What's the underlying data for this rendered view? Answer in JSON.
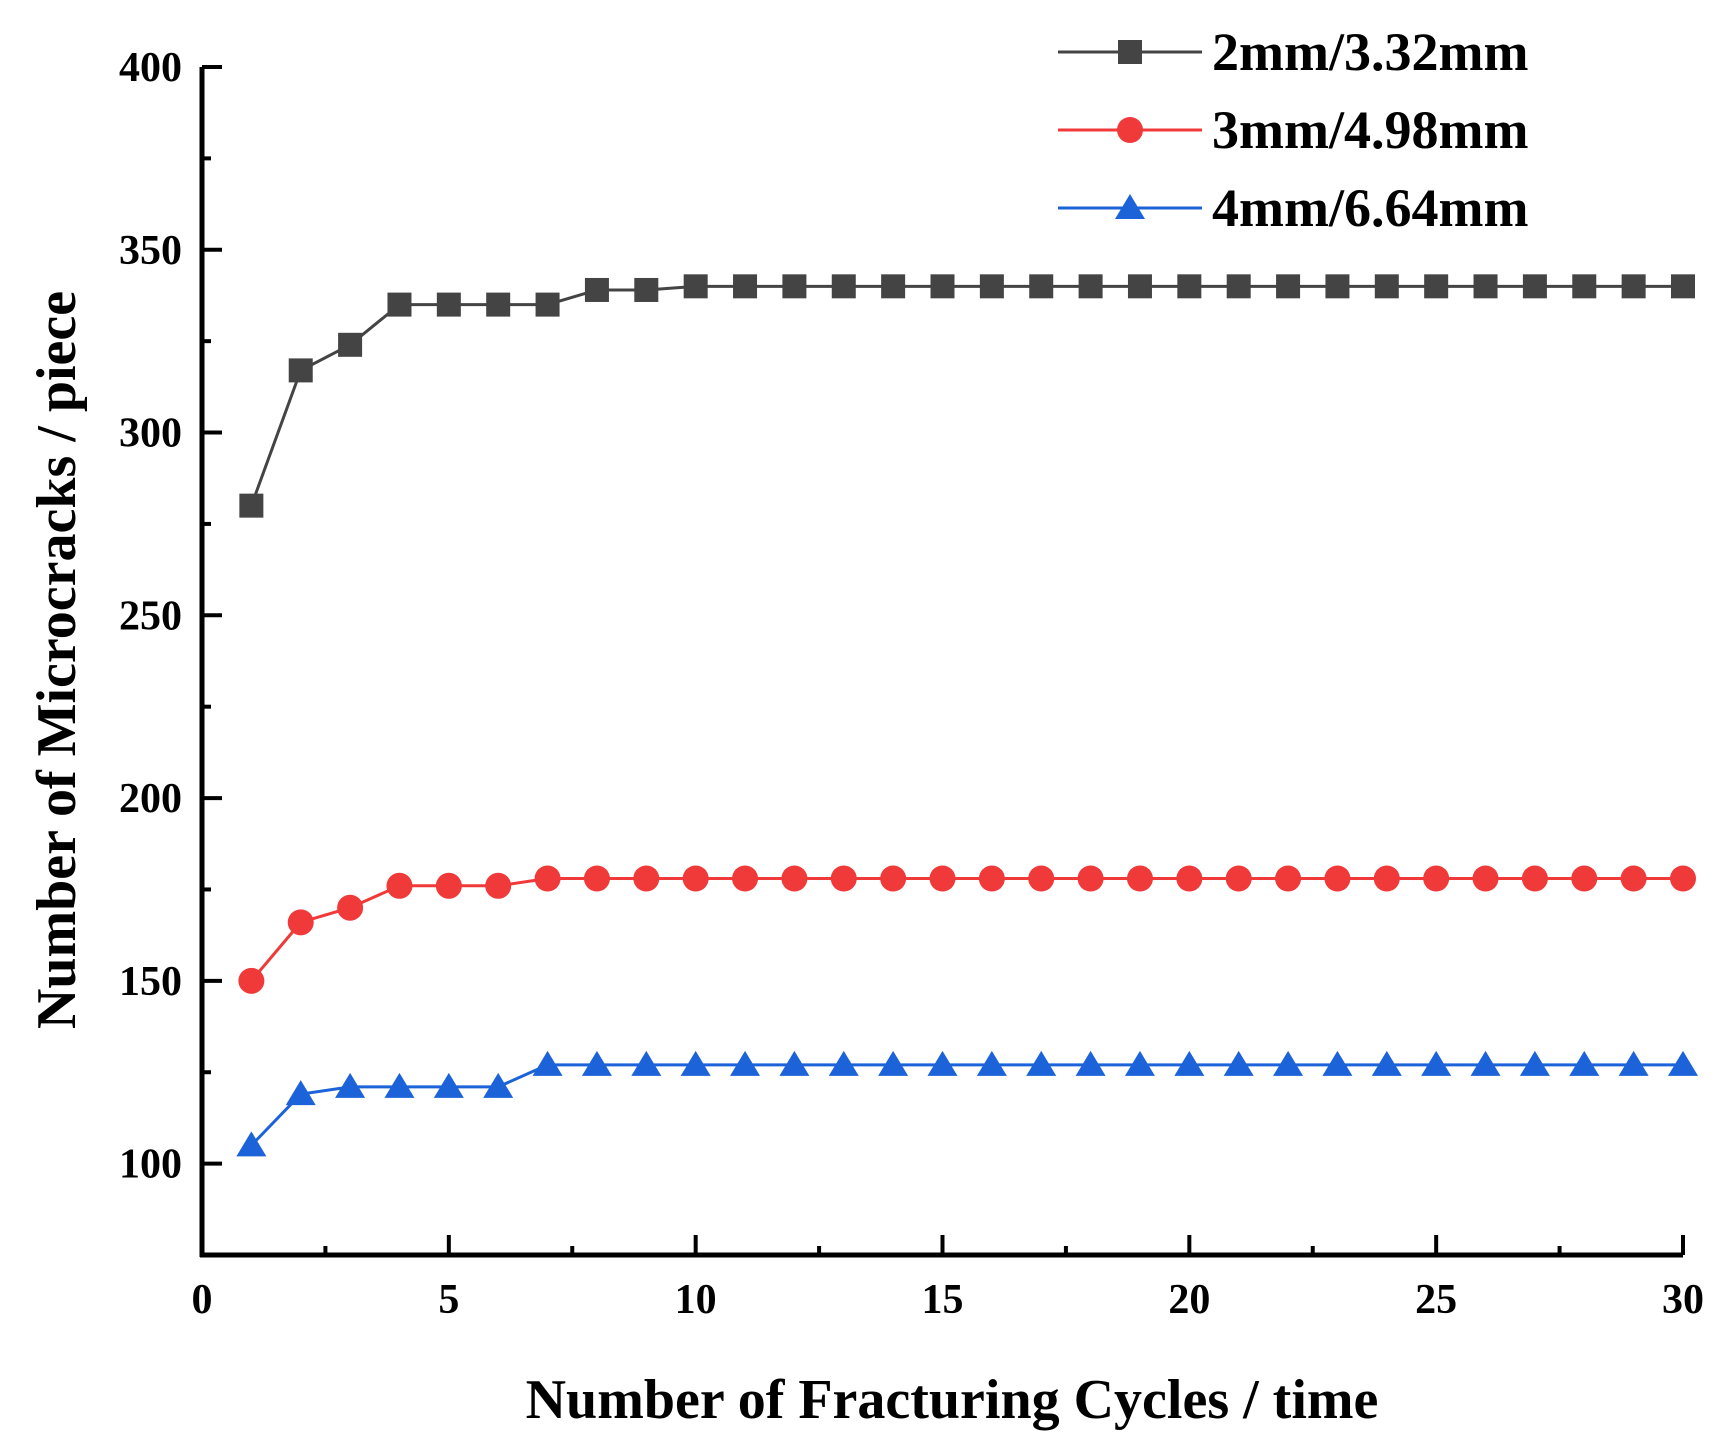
{
  "chart_data": {
    "type": "line",
    "title": "",
    "xlabel": "Number of Fracturing Cycles / time",
    "ylabel": "Number of Microcracks / piece",
    "xlim": [
      0,
      30
    ],
    "ylim": [
      75,
      400
    ],
    "xticks": [
      "0",
      "5",
      "10",
      "15",
      "20",
      "25",
      "30"
    ],
    "yticks": [
      "100",
      "150",
      "200",
      "250",
      "300",
      "350",
      "400"
    ],
    "grid": false,
    "legend_position": "top-right",
    "x": [
      1,
      2,
      3,
      4,
      5,
      6,
      7,
      8,
      9,
      10,
      11,
      12,
      13,
      14,
      15,
      16,
      17,
      18,
      19,
      20,
      21,
      22,
      23,
      24,
      25,
      26,
      27,
      28,
      29,
      30
    ],
    "series": [
      {
        "name": "2mm/3.32mm",
        "color": "#444444",
        "marker": "square",
        "values": [
          280,
          317,
          324,
          335,
          335,
          335,
          335,
          339,
          339,
          340,
          340,
          340,
          340,
          340,
          340,
          340,
          340,
          340,
          340,
          340,
          340,
          340,
          340,
          340,
          340,
          340,
          340,
          340,
          340,
          340
        ]
      },
      {
        "name": "3mm/4.98mm",
        "color": "#f03a3a",
        "marker": "circle",
        "values": [
          150,
          166,
          170,
          176,
          176,
          176,
          178,
          178,
          178,
          178,
          178,
          178,
          178,
          178,
          178,
          178,
          178,
          178,
          178,
          178,
          178,
          178,
          178,
          178,
          178,
          178,
          178,
          178,
          178,
          178
        ]
      },
      {
        "name": "4mm/6.64mm",
        "color": "#1c63d9",
        "marker": "triangle",
        "values": [
          105,
          119,
          121,
          121,
          121,
          121,
          127,
          127,
          127,
          127,
          127,
          127,
          127,
          127,
          127,
          127,
          127,
          127,
          127,
          127,
          127,
          127,
          127,
          127,
          127,
          127,
          127,
          127,
          127,
          127
        ]
      }
    ]
  }
}
